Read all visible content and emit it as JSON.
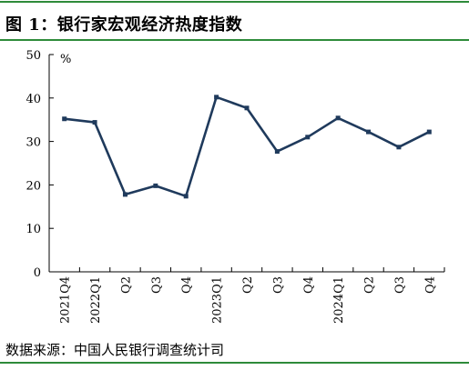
{
  "header": {
    "title": "图 1：银行家宏观经济热度指数"
  },
  "footer": {
    "source": "数据来源：中国人民银行调查统计司"
  },
  "colors": {
    "rule": "#2e8b3a",
    "line": "#1f3a5c",
    "axis": "#000000"
  },
  "chart_data": {
    "type": "line",
    "unit": "%",
    "categories": [
      "2021Q4",
      "2022Q1",
      "Q2",
      "Q3",
      "Q4",
      "2023Q1",
      "Q2",
      "Q3",
      "Q4",
      "2024Q1",
      "Q2",
      "Q3",
      "Q4"
    ],
    "series": [
      {
        "values": [
          35.2,
          34.4,
          17.8,
          19.8,
          17.4,
          40.2,
          37.7,
          27.7,
          31.0,
          35.4,
          32.2,
          28.7,
          32.2
        ]
      }
    ],
    "ylim": [
      0,
      50
    ],
    "yticks": [
      0,
      10,
      20,
      30,
      40,
      50
    ],
    "grid": false,
    "legend": "none"
  }
}
